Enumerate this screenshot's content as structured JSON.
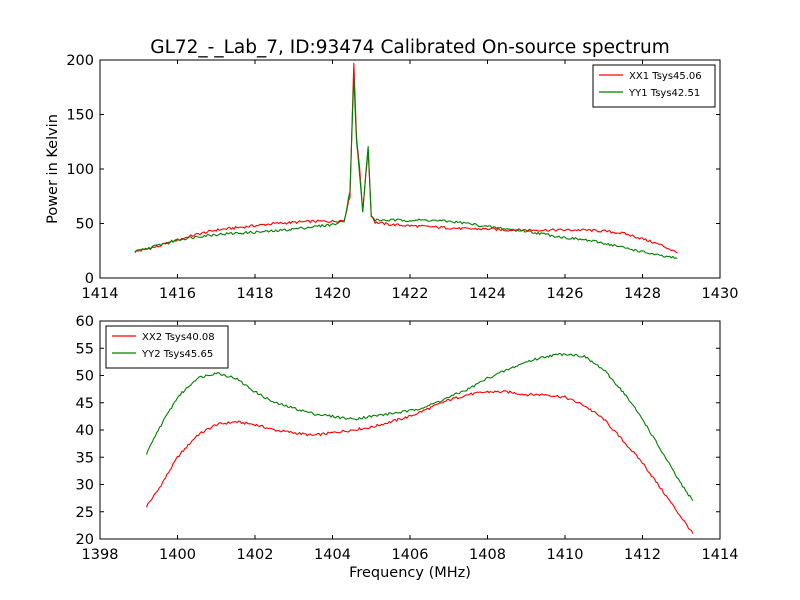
{
  "figure_title": "GL72_-_Lab_7, ID:93474 Calibrated On-source spectrum",
  "chart_data": [
    {
      "type": "line",
      "title": "GL72_-_Lab_7, ID:93474 Calibrated On-source spectrum",
      "xlabel": "",
      "ylabel": "Power in Kelvin",
      "xlim": [
        1414,
        1430
      ],
      "ylim": [
        0,
        200
      ],
      "xticks": [
        "1414",
        "1416",
        "1418",
        "1420",
        "1422",
        "1424",
        "1426",
        "1428",
        "1430"
      ],
      "yticks": [
        "0",
        "50",
        "100",
        "150",
        "200"
      ],
      "grid": false,
      "legend": "top-right",
      "series": [
        {
          "name": "XX1 Tsys45.06",
          "color": "#ff0000",
          "x": [
            1414.9,
            1415.5,
            1416.0,
            1416.5,
            1417.0,
            1417.5,
            1418.0,
            1418.5,
            1419.0,
            1419.5,
            1420.0,
            1420.3,
            1420.45,
            1420.55,
            1420.62,
            1420.7,
            1420.78,
            1420.85,
            1420.92,
            1421.0,
            1421.1,
            1421.5,
            1422.0,
            1422.5,
            1423.0,
            1423.5,
            1424.0,
            1424.5,
            1425.0,
            1425.5,
            1426.0,
            1426.5,
            1427.0,
            1427.5,
            1428.0,
            1428.5,
            1428.9
          ],
          "y": [
            24,
            29,
            35,
            40,
            44,
            46,
            48,
            50,
            51,
            52,
            52,
            53,
            75,
            197,
            130,
            100,
            62,
            90,
            118,
            58,
            51,
            49,
            48,
            47,
            46,
            45,
            45,
            44,
            44,
            44,
            44,
            44,
            43,
            41,
            36,
            30,
            23
          ]
        },
        {
          "name": "YY1 Tsys42.51",
          "color": "#008000",
          "x": [
            1414.9,
            1415.5,
            1416.0,
            1416.5,
            1417.0,
            1417.5,
            1418.0,
            1418.5,
            1419.0,
            1419.5,
            1420.0,
            1420.3,
            1420.45,
            1420.55,
            1420.62,
            1420.7,
            1420.78,
            1420.85,
            1420.92,
            1421.0,
            1421.1,
            1421.5,
            1422.0,
            1422.5,
            1423.0,
            1423.5,
            1424.0,
            1424.5,
            1425.0,
            1425.5,
            1426.0,
            1426.5,
            1427.0,
            1427.5,
            1428.0,
            1428.5,
            1428.9
          ],
          "y": [
            24,
            30,
            35,
            38,
            40,
            41,
            42,
            43,
            45,
            47,
            49,
            52,
            80,
            185,
            125,
            95,
            60,
            92,
            120,
            57,
            53,
            53,
            53,
            53,
            52,
            50,
            47,
            45,
            43,
            40,
            37,
            35,
            32,
            28,
            24,
            20,
            18
          ]
        }
      ]
    },
    {
      "type": "line",
      "title": "",
      "xlabel": "Frequency (MHz)",
      "ylabel": "",
      "xlim": [
        1398,
        1414
      ],
      "ylim": [
        20,
        60
      ],
      "xticks": [
        "1398",
        "1400",
        "1402",
        "1404",
        "1406",
        "1408",
        "1410",
        "1412",
        "1414"
      ],
      "yticks": [
        "20",
        "25",
        "30",
        "35",
        "40",
        "45",
        "50",
        "55",
        "60"
      ],
      "grid": false,
      "legend": "top-left",
      "series": [
        {
          "name": "XX2 Tsys40.08",
          "color": "#ff0000",
          "x": [
            1399.2,
            1399.5,
            1400.0,
            1400.5,
            1401.0,
            1401.5,
            1402.0,
            1402.5,
            1403.0,
            1403.5,
            1404.0,
            1404.5,
            1405.0,
            1405.5,
            1406.0,
            1406.5,
            1407.0,
            1407.5,
            1408.0,
            1408.5,
            1409.0,
            1409.5,
            1410.0,
            1410.5,
            1411.0,
            1411.5,
            1412.0,
            1412.5,
            1413.0,
            1413.3
          ],
          "y": [
            26,
            29,
            35,
            39,
            41,
            41.5,
            41,
            40,
            39.5,
            39,
            39.5,
            40,
            40.5,
            41.5,
            42.5,
            44,
            45.5,
            46.5,
            47,
            47,
            46.5,
            46.5,
            46,
            44.5,
            42,
            38,
            34,
            29,
            24,
            21
          ]
        },
        {
          "name": "YY2 Tsys45.65",
          "color": "#008000",
          "x": [
            1399.2,
            1399.5,
            1400.0,
            1400.5,
            1401.0,
            1401.5,
            1402.0,
            1402.5,
            1403.0,
            1403.5,
            1404.0,
            1404.5,
            1405.0,
            1405.5,
            1406.0,
            1406.5,
            1407.0,
            1407.5,
            1408.0,
            1408.5,
            1409.0,
            1409.5,
            1410.0,
            1410.5,
            1411.0,
            1411.5,
            1412.0,
            1412.5,
            1413.0,
            1413.3
          ],
          "y": [
            35.5,
            40,
            46,
            49.5,
            50.5,
            49.5,
            47,
            45,
            44,
            43,
            42.5,
            42,
            42.5,
            43,
            43.5,
            44.5,
            46,
            47.5,
            49.5,
            51,
            52.5,
            53.5,
            54,
            53.5,
            51,
            47,
            42,
            36,
            30,
            27
          ]
        }
      ]
    }
  ]
}
